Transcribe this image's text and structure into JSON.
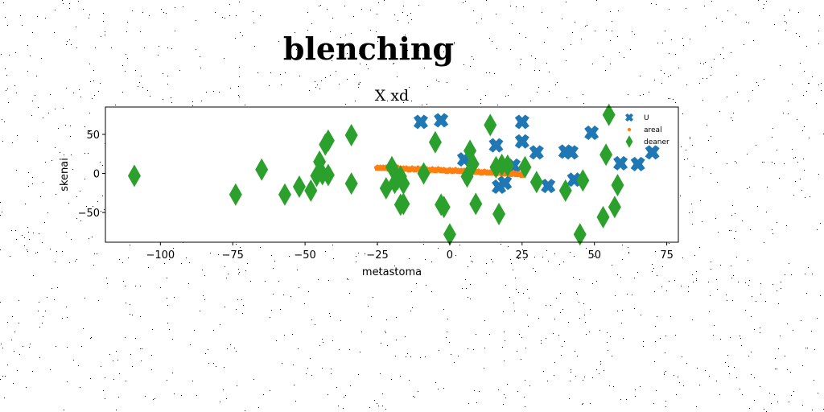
{
  "chart_data": {
    "type": "scatter",
    "suptitle": "blenching",
    "title": "X xd",
    "xlabel": "metastoma",
    "ylabel": "skenai",
    "xlim": [
      -119,
      79
    ],
    "ylim": [
      -88,
      85
    ],
    "xticks": [
      -100,
      -75,
      -50,
      -25,
      0,
      25,
      50,
      75
    ],
    "yticks": [
      -50,
      0,
      50
    ],
    "xtick_labels": [
      "−100",
      "−75",
      "−50",
      "−25",
      "0",
      "25",
      "50",
      "75"
    ],
    "ytick_labels": [
      "−50",
      "0",
      "50"
    ],
    "grid": false,
    "legend_position": "top-right",
    "series": [
      {
        "name": "U",
        "marker": "x-filled",
        "color": "#1f77b4",
        "x": [
          -10,
          -3,
          5,
          16,
          17,
          19,
          22,
          25,
          25,
          30,
          34,
          40,
          42,
          43,
          49,
          59,
          65,
          70
        ],
        "y": [
          66,
          68,
          18,
          36,
          -17,
          -12,
          10,
          66,
          41,
          27,
          -16,
          28,
          27,
          -8,
          52,
          13,
          12,
          27
        ]
      },
      {
        "name": "areal",
        "marker": "pentagon",
        "color": "#ff7f0e",
        "x": [
          -25,
          -24,
          -23,
          -22,
          -21,
          -20,
          -19,
          -18,
          -17,
          -16,
          -15,
          -14,
          -13,
          -12,
          -11,
          -10,
          -9,
          -8,
          -7,
          -6,
          -5,
          -4,
          -3,
          -2,
          -1,
          0,
          1,
          2,
          3,
          4,
          5,
          6,
          7,
          8,
          9,
          10,
          11,
          12,
          13,
          14,
          15,
          16,
          17,
          18,
          19,
          20,
          21,
          22,
          23,
          24,
          25
        ],
        "y": [
          7,
          7,
          7,
          7,
          6,
          7,
          6,
          7,
          6,
          6,
          6,
          5,
          6,
          5,
          6,
          5,
          5,
          5,
          4,
          5,
          4,
          5,
          4,
          4,
          3,
          4,
          3,
          4,
          3,
          3,
          3,
          2,
          3,
          2,
          2,
          2,
          1,
          2,
          1,
          1,
          1,
          0,
          1,
          0,
          0,
          0,
          -1,
          0,
          -1,
          -1,
          -2
        ]
      },
      {
        "name": "deaner",
        "marker": "thin-diamond",
        "color": "#2ca02c",
        "x": [
          -109,
          -74,
          -65,
          -57,
          -52,
          -48,
          -46,
          -45,
          -44,
          -43,
          -42,
          -42,
          -34,
          -34,
          -22,
          -20,
          -19,
          -18,
          -17,
          -17,
          -16,
          -16,
          -9,
          -5,
          -3,
          -2,
          0,
          6,
          7,
          8,
          9,
          14,
          16,
          17,
          18,
          20,
          26,
          30,
          40,
          45,
          46,
          53,
          54,
          55,
          57,
          58
        ],
        "y": [
          -3,
          -27,
          5,
          -27,
          -17,
          -22,
          -3,
          15,
          -1,
          37,
          42,
          -2,
          49,
          -13,
          -19,
          8,
          -12,
          -7,
          -4,
          -40,
          -13,
          -39,
          0,
          40,
          -40,
          -43,
          -78,
          -4,
          29,
          12,
          -39,
          62,
          8,
          -52,
          11,
          10,
          8,
          -11,
          -22,
          -78,
          -9,
          -56,
          24,
          75,
          -43,
          -15
        ]
      }
    ]
  }
}
